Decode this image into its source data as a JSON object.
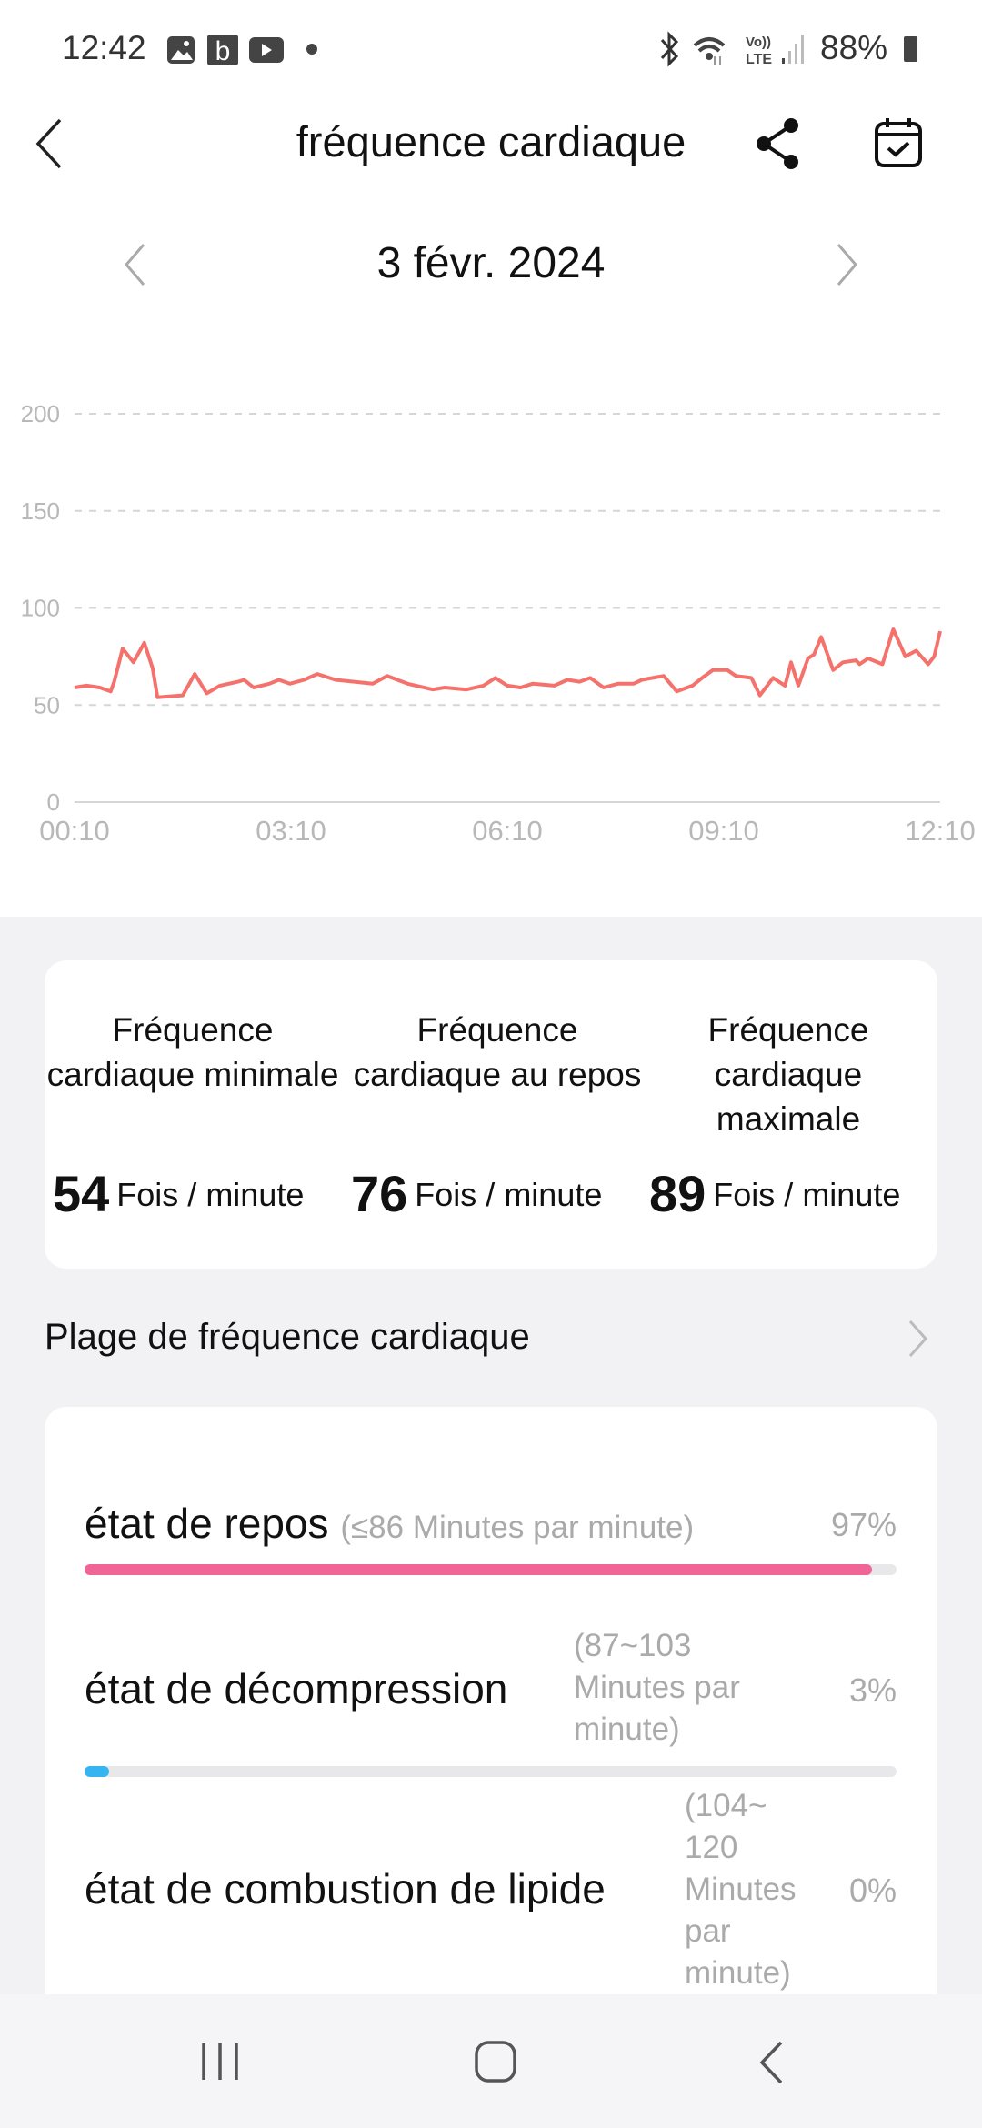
{
  "status_bar": {
    "time": "12:42",
    "battery": "88%",
    "icons": [
      "gallery-icon",
      "b-app-icon",
      "youtube-icon",
      "dot-icon",
      "bluetooth-icon",
      "wifi-icon",
      "volte-icon",
      "signal-icon",
      "battery-icon"
    ],
    "volte_top": "Vo))",
    "volte_bottom": "LTE"
  },
  "header": {
    "title": "fréquence cardiaque",
    "icons": [
      "back-icon",
      "share-icon",
      "calendar-icon"
    ]
  },
  "date_nav": {
    "date": "3 févr. 2024"
  },
  "colors": {
    "line": "#f4726b",
    "rest_bar": "#f06595",
    "decompression_bar": "#36b4f0"
  },
  "chart_data": {
    "type": "line",
    "ylim": [
      0,
      200
    ],
    "yticks": [
      "0",
      "50",
      "100",
      "150",
      "200"
    ],
    "xticks": [
      "00:10",
      "03:10",
      "06:10",
      "09:10",
      "12:10"
    ],
    "xlim": [
      "00:10",
      "12:10"
    ],
    "grid": true,
    "x": [
      "00:10",
      "00:20",
      "00:31",
      "00:40",
      "00:43",
      "00:50",
      "00:59",
      "01:08",
      "01:15",
      "01:19",
      "01:40",
      "01:50",
      "02:00",
      "02:11",
      "02:26",
      "02:31",
      "02:39",
      "02:52",
      "03:00",
      "03:09",
      "03:21",
      "03:32",
      "03:47",
      "04:18",
      "04:30",
      "04:47",
      "05:08",
      "05:18",
      "05:36",
      "05:50",
      "06:00",
      "06:10",
      "06:21",
      "06:31",
      "06:49",
      "07:00",
      "07:10",
      "07:19",
      "07:30",
      "07:42",
      "07:55",
      "08:02",
      "08:20",
      "08:31",
      "08:44",
      "08:52",
      "09:01",
      "09:13",
      "09:20",
      "09:33",
      "09:40",
      "09:51",
      "10:01",
      "10:06",
      "10:12",
      "10:20",
      "10:25",
      "10:31",
      "10:41",
      "10:49",
      "11:00",
      "11:03",
      "11:10",
      "11:22",
      "11:31",
      "11:41",
      "11:50",
      "12:00",
      "12:05",
      "12:10"
    ],
    "y": [
      59,
      60,
      59,
      57,
      62,
      79,
      72,
      82,
      69,
      54,
      55,
      66,
      56,
      60,
      62,
      63,
      59,
      61,
      63,
      61,
      63,
      66,
      63,
      61,
      65,
      61,
      58,
      59,
      58,
      60,
      64,
      60,
      59,
      61,
      60,
      63,
      62,
      64,
      59,
      61,
      61,
      63,
      65,
      57,
      60,
      64,
      68,
      68,
      65,
      64,
      55,
      64,
      60,
      72,
      60,
      74,
      76,
      85,
      68,
      72,
      73,
      71,
      74,
      71,
      89,
      75,
      78,
      71,
      75,
      88
    ]
  },
  "summary": {
    "items": [
      {
        "label": "Fréquence cardiaque minimale",
        "value": "54",
        "unit": "Fois / minute"
      },
      {
        "label": "Fréquence cardiaque au repos",
        "value": "76",
        "unit": "Fois / minute"
      },
      {
        "label": "Fréquence cardiaque maximale",
        "value": "89",
        "unit": "Fois / minute"
      }
    ]
  },
  "range_section": {
    "title": "Plage de fréquence cardiaque"
  },
  "zones": [
    {
      "label": "état de repos",
      "range": "(≤86 Minutes par minute)",
      "percent": "97%",
      "fill": 97
    },
    {
      "label": "état de décompression",
      "range_lines": [
        "(87~103",
        "Minutes par",
        "minute)"
      ],
      "percent": "3%",
      "fill": 3
    },
    {
      "label": "état de combustion de lipide",
      "range_lines": [
        "(104~",
        "120",
        "Minutes",
        "par",
        "minute)"
      ],
      "percent": "0%",
      "fill": 0
    }
  ],
  "nav_bar": {
    "icons": [
      "recent-apps-icon",
      "home-icon",
      "back-icon"
    ]
  }
}
